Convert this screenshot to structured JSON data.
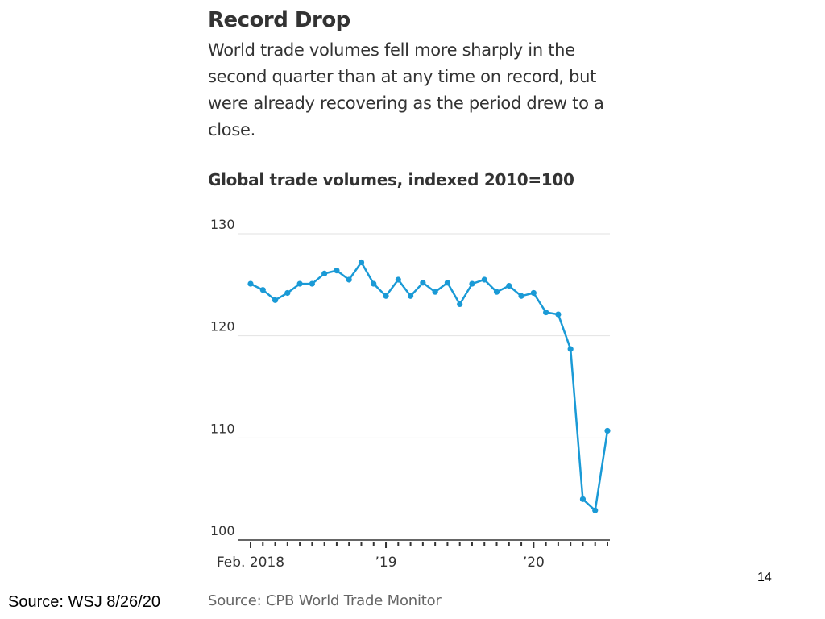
{
  "headline": "Record Drop",
  "dek": "World trade volumes fell more sharply in the second quarter than at any time on record, but were already recovering as the period drew to a close.",
  "source_note": "Source: CPB World Trade Monitor",
  "slide_source": "Source: WSJ 8/26/20",
  "page_number": "14",
  "colors": {
    "line": "#1a9ad6",
    "grid": "#e2e2e2",
    "axis": "#333333",
    "text": "#333333"
  },
  "chart_data": {
    "type": "line",
    "title": "Global trade volumes, indexed 2010=100",
    "xlabel": "",
    "ylabel": "",
    "ylim": [
      100,
      130
    ],
    "yticks": [
      100,
      110,
      120,
      130
    ],
    "grid": true,
    "x_tick_labels": [
      {
        "label": "Feb. 2018",
        "index": 0
      },
      {
        "label": "’19",
        "index": 11
      },
      {
        "label": "’20",
        "index": 23
      }
    ],
    "series": [
      {
        "values": [
          125.1,
          124.5,
          123.5,
          124.2,
          125.1,
          125.1,
          126.1,
          126.4,
          125.5,
          127.2,
          125.1,
          123.9,
          125.5,
          123.9,
          125.2,
          124.3,
          125.2,
          123.1,
          125.1,
          125.5,
          124.3,
          124.9,
          123.9,
          124.2,
          122.3,
          122.1,
          118.7,
          104.0,
          102.9,
          110.7
        ]
      }
    ]
  }
}
